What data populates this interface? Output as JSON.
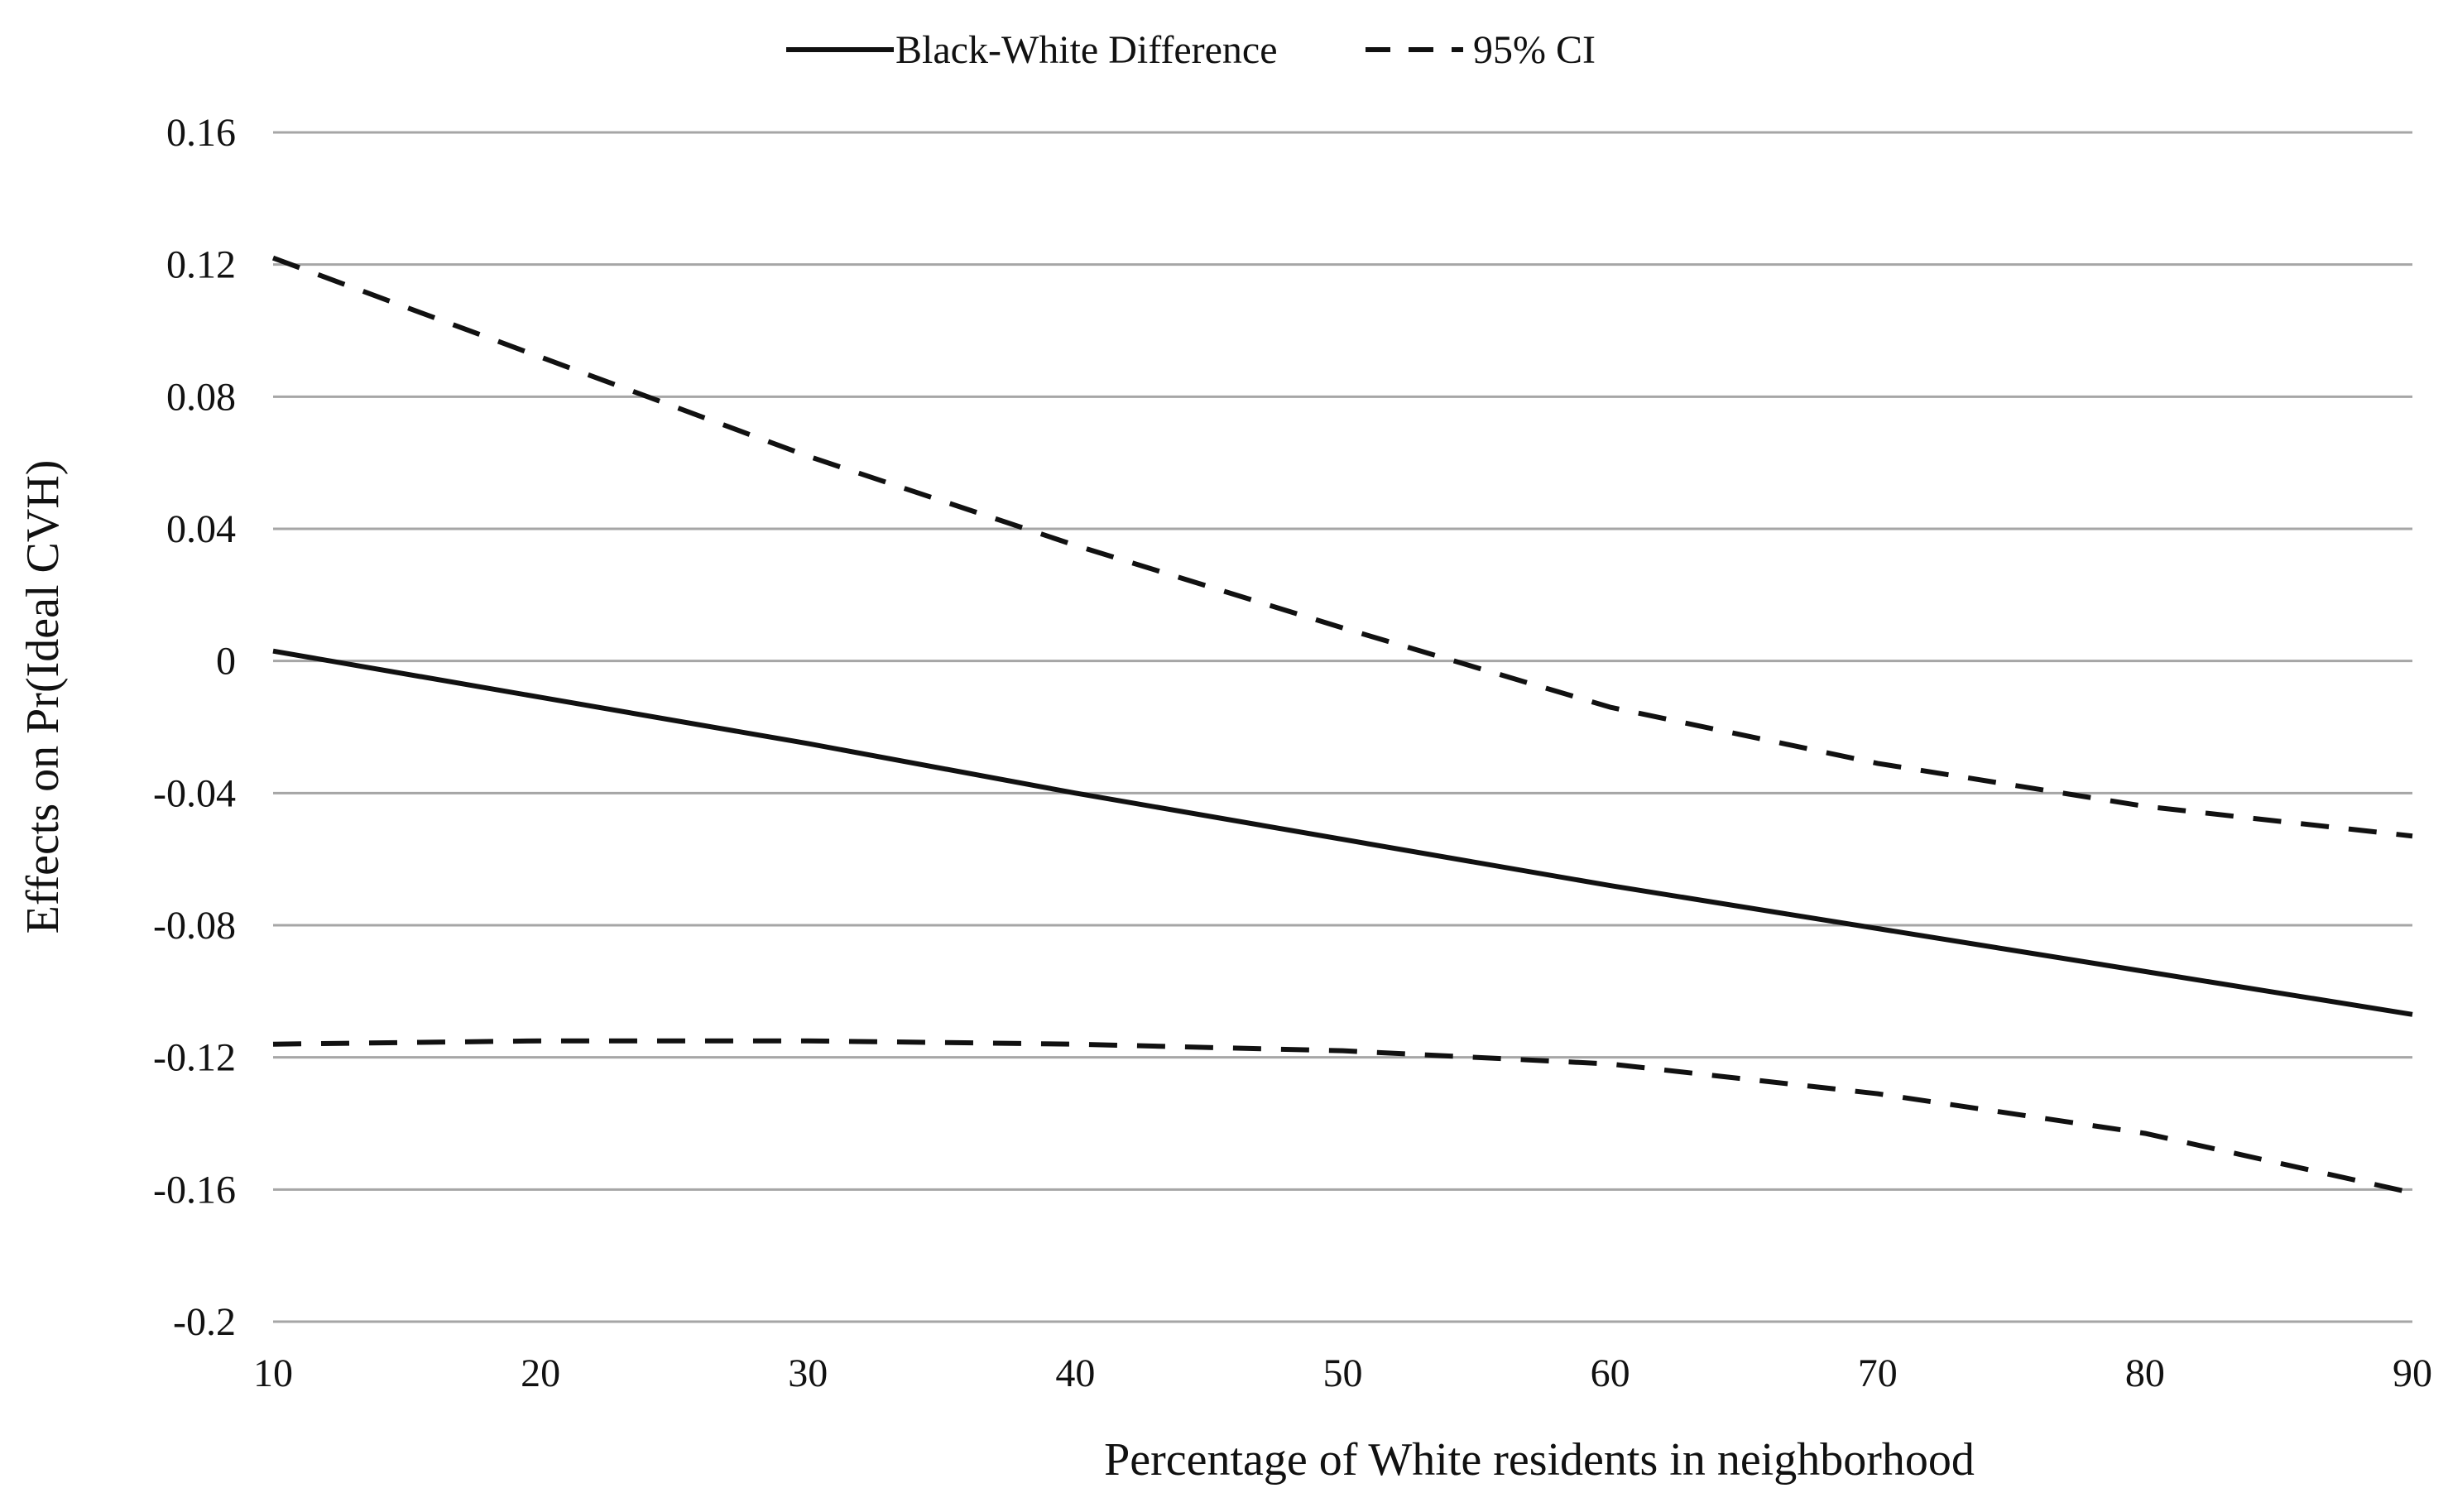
{
  "chart_data": {
    "type": "line",
    "title": "",
    "xlabel": "Percentage of White residents in neighborhood",
    "ylabel": "Effects on Pr(Ideal CVH)",
    "x": [
      10,
      20,
      30,
      40,
      50,
      60,
      70,
      80,
      90
    ],
    "xticks": [
      "10",
      "20",
      "30",
      "40",
      "50",
      "60",
      "70",
      "80",
      "90"
    ],
    "yticks": [
      "0.16",
      "0.12",
      "0.08",
      "0.04",
      "0",
      "-0.04",
      "-0.08",
      "-0.12",
      "-0.16",
      "-0.2"
    ],
    "ytick_values": [
      0.16,
      0.12,
      0.08,
      0.04,
      0,
      -0.04,
      -0.08,
      -0.12,
      -0.16,
      -0.2
    ],
    "xlim": [
      10,
      90
    ],
    "ylim": [
      -0.2,
      0.16
    ],
    "grid": "horizontal",
    "legend_position": "top-center",
    "series": [
      {
        "name": "Black-White Difference",
        "style": "solid",
        "color": "#111111",
        "values": [
          0.003,
          -0.011,
          -0.025,
          -0.04,
          -0.054,
          -0.068,
          -0.081,
          -0.094,
          -0.107
        ]
      },
      {
        "name": "95% CI",
        "style": "dashed",
        "color": "#111111",
        "values": [
          0.122,
          0.092,
          0.062,
          0.035,
          0.01,
          -0.014,
          -0.031,
          -0.044,
          -0.053
        ]
      },
      {
        "name": "95% CI",
        "style": "dashed",
        "color": "#111111",
        "legend": false,
        "values": [
          -0.116,
          -0.115,
          -0.115,
          -0.116,
          -0.118,
          -0.122,
          -0.131,
          -0.143,
          -0.161
        ]
      }
    ]
  },
  "legend": {
    "items": [
      {
        "label": "Black-White Difference",
        "style": "solid"
      },
      {
        "label": "95% CI",
        "style": "dashed"
      }
    ]
  },
  "colors": {
    "gridline": "#a6a6a6",
    "line": "#111111",
    "background": "#ffffff"
  }
}
